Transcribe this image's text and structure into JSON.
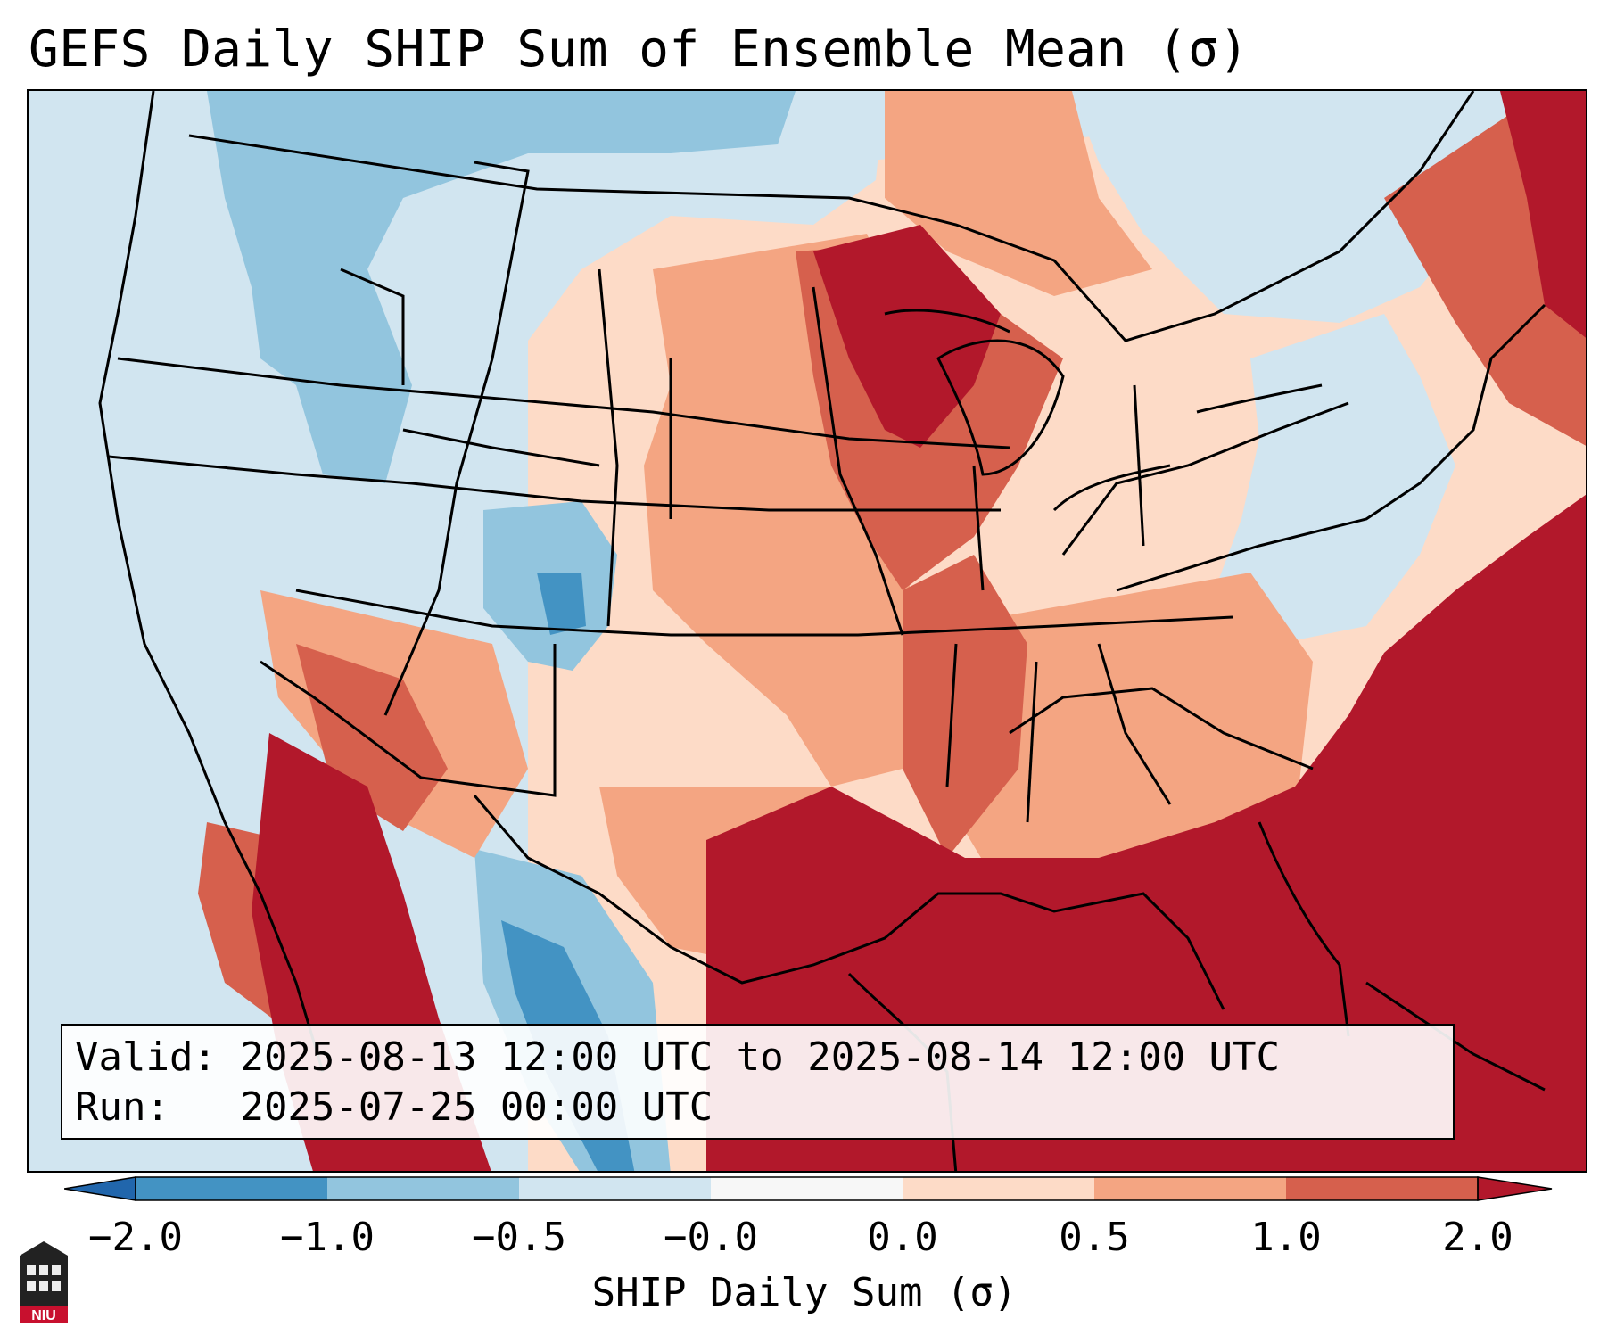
{
  "title": "GEFS Daily SHIP Sum of Ensemble Mean (σ)",
  "info": {
    "valid_label": "Valid:",
    "valid_value": "2025-08-13 12:00 UTC to 2025-08-14 12:00 UTC",
    "run_label": "Run:",
    "run_value": "2025-07-25 00:00 UTC"
  },
  "colorbar": {
    "label": "SHIP Daily Sum (σ)",
    "ticks": [
      "−2.0",
      "−1.0",
      "−0.5",
      "−0.0",
      "0.0",
      "0.5",
      "1.0",
      "2.0"
    ],
    "colors": [
      "#4393c3",
      "#92c5de",
      "#d1e5f0",
      "#f7f7f7",
      "#fddbc7",
      "#f4a582",
      "#d6604d",
      "#b2182b"
    ]
  },
  "logo": {
    "text": "NIU"
  },
  "map": {
    "region": "Contiguous United States, northern Mexico, Gulf of Mexico",
    "field": "SHIP daily sum anomaly (σ)",
    "colors": {
      "strong_negative": "#4393c3",
      "negative": "#92c5de",
      "weak_negative": "#d1e5f0",
      "weak_positive": "#fddbc7",
      "positive": "#f4a582",
      "strong_positive": "#d6604d",
      "extreme_positive": "#b2182b"
    }
  }
}
